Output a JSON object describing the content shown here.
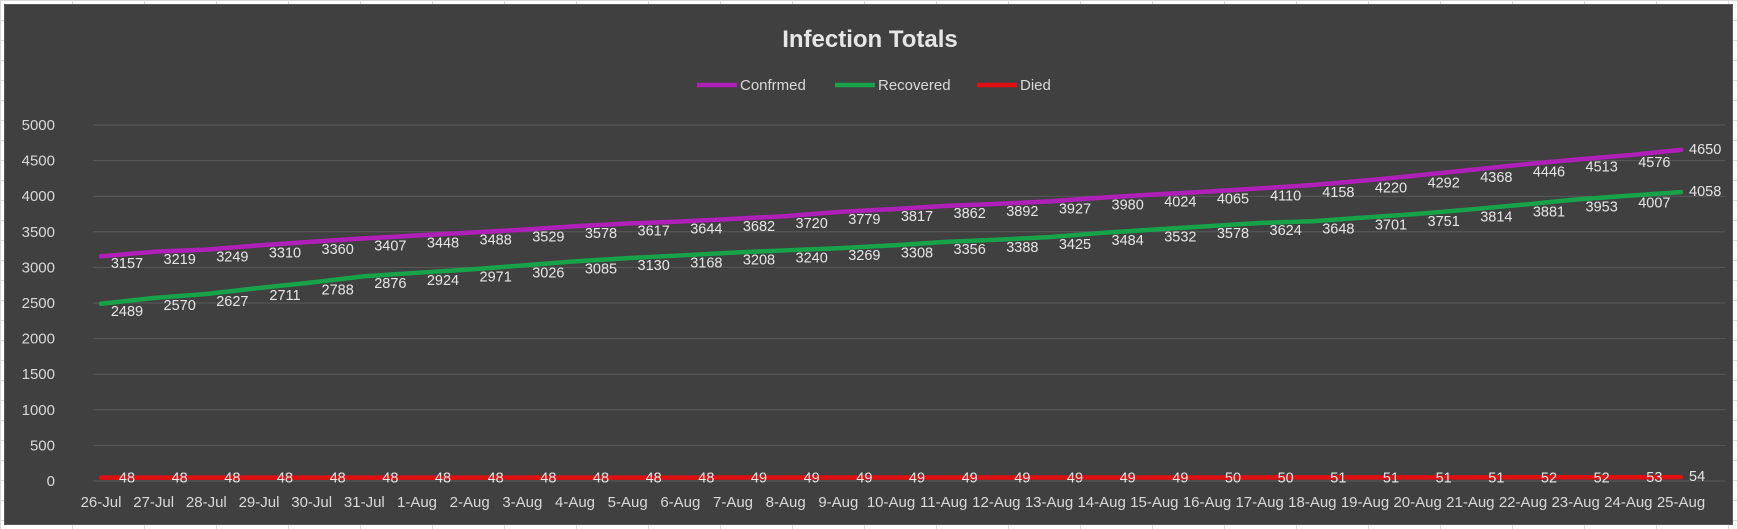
{
  "chart_data": {
    "type": "line",
    "title": "Infection Totals",
    "xlabel": "",
    "ylabel": "",
    "categories": [
      "26-Jul",
      "27-Jul",
      "28-Jul",
      "29-Jul",
      "30-Jul",
      "31-Jul",
      "1-Aug",
      "2-Aug",
      "3-Aug",
      "4-Aug",
      "5-Aug",
      "6-Aug",
      "7-Aug",
      "8-Aug",
      "9-Aug",
      "10-Aug",
      "11-Aug",
      "12-Aug",
      "13-Aug",
      "14-Aug",
      "15-Aug",
      "16-Aug",
      "17-Aug",
      "18-Aug",
      "19-Aug",
      "20-Aug",
      "21-Aug",
      "22-Aug",
      "23-Aug",
      "24-Aug",
      "25-Aug"
    ],
    "ylim": [
      0,
      5000
    ],
    "yticks": [
      "0",
      "500",
      "1000",
      "1500",
      "2000",
      "2500",
      "3000",
      "3500",
      "4000",
      "4500",
      "5000"
    ],
    "grid": true,
    "legend_position": "top",
    "series": [
      {
        "name": "Confrmed",
        "color": "#b020b8",
        "values": [
          3157,
          3219,
          3249,
          3310,
          3360,
          3407,
          3448,
          3488,
          3529,
          3578,
          3617,
          3644,
          3682,
          3720,
          3779,
          3817,
          3862,
          3892,
          3927,
          3980,
          4024,
          4065,
          4110,
          4158,
          4220,
          4292,
          4368,
          4446,
          4513,
          4576,
          4650
        ]
      },
      {
        "name": "Recovered",
        "color": "#16a34a",
        "values": [
          2489,
          2570,
          2627,
          2711,
          2788,
          2876,
          2924,
          2971,
          3026,
          3085,
          3130,
          3168,
          3208,
          3240,
          3269,
          3308,
          3356,
          3388,
          3425,
          3484,
          3532,
          3578,
          3624,
          3648,
          3701,
          3751,
          3814,
          3881,
          3953,
          4007,
          4058
        ]
      },
      {
        "name": "Died",
        "color": "#e01010",
        "values": [
          48,
          48,
          48,
          48,
          48,
          48,
          48,
          48,
          48,
          48,
          48,
          48,
          49,
          49,
          49,
          49,
          49,
          49,
          49,
          49,
          49,
          50,
          50,
          51,
          51,
          51,
          51,
          52,
          52,
          53,
          54
        ]
      }
    ]
  }
}
